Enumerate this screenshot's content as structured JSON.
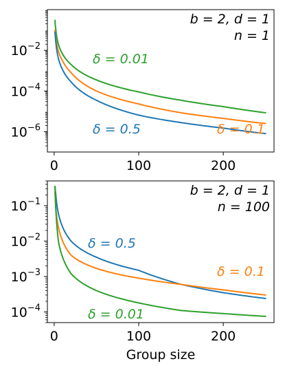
{
  "chart_data": [
    {
      "type": "line",
      "id": "top",
      "annotation_lines": [
        "b = 2, d = 1",
        "n = 1"
      ],
      "xlabel": "",
      "ylabel": "",
      "xlim": [
        -8,
        260
      ],
      "ylim": [
        1e-07,
        1.0
      ],
      "yscale": "log",
      "xticks": [
        0,
        100,
        200
      ],
      "xtick_labels": [
        "0",
        "100",
        "200"
      ],
      "yticks": [
        0.01,
        0.0001,
        1e-06
      ],
      "ytick_labels": [
        {
          "base": "10",
          "exp": "−2"
        },
        {
          "base": "10",
          "exp": "−4"
        },
        {
          "base": "10",
          "exp": "−6"
        }
      ],
      "grid": false,
      "series": [
        {
          "name": "δ = 0.01",
          "color": "#2ca02c",
          "x": [
            1,
            2,
            5,
            10,
            20,
            50,
            100,
            150,
            200,
            250
          ],
          "y": [
            0.3,
            0.1,
            0.02,
            0.0065,
            0.002,
            0.00035,
            9e-05,
            3.5e-05,
            1.7e-05,
            8.5e-06
          ]
        },
        {
          "name": "δ = 0.1",
          "color": "#ff7f0e",
          "x": [
            1,
            2,
            5,
            10,
            20,
            50,
            100,
            150,
            200,
            250
          ],
          "y": [
            0.1,
            0.04,
            0.009,
            0.003,
            0.0008,
            0.0001,
            2.3e-05,
            8.5e-06,
            4.5e-06,
            2.5e-06
          ]
        },
        {
          "name": "δ = 0.5",
          "color": "#1f77b4",
          "x": [
            1,
            2,
            5,
            10,
            20,
            50,
            100,
            150,
            200,
            250
          ],
          "y": [
            0.08,
            0.025,
            0.004,
            0.0011,
            0.00028,
            3.5e-05,
            6.5e-06,
            2.8e-06,
            1.5e-06,
            8e-07
          ]
        }
      ]
    },
    {
      "type": "line",
      "id": "bottom",
      "annotation_lines": [
        "b = 2, d = 1",
        "n = 100"
      ],
      "xlabel": "Group size",
      "ylabel": "",
      "xlim": [
        -8,
        260
      ],
      "ylim": [
        5e-05,
        0.5
      ],
      "yscale": "log",
      "xticks": [
        0,
        100,
        200
      ],
      "xtick_labels": [
        "0",
        "100",
        "200"
      ],
      "yticks": [
        0.1,
        0.01,
        0.001,
        0.0001
      ],
      "ytick_labels": [
        {
          "base": "10",
          "exp": "−1"
        },
        {
          "base": "10",
          "exp": "−2"
        },
        {
          "base": "10",
          "exp": "−3"
        },
        {
          "base": "10",
          "exp": "−4"
        }
      ],
      "grid": false,
      "series": [
        {
          "name": "δ = 0.5",
          "color": "#1f77b4",
          "x": [
            1,
            2,
            5,
            10,
            20,
            50,
            100,
            150,
            200,
            250
          ],
          "y": [
            0.35,
            0.2,
            0.06,
            0.025,
            0.01,
            0.0035,
            0.0015,
            0.0006,
            0.00035,
            0.00024
          ]
        },
        {
          "name": "δ = 0.1",
          "color": "#ff7f0e",
          "x": [
            1,
            2,
            5,
            10,
            20,
            50,
            100,
            150,
            200,
            250
          ],
          "y": [
            0.25,
            0.08,
            0.025,
            0.01,
            0.004,
            0.0017,
            0.0009,
            0.0006,
            0.00042,
            0.0003
          ]
        },
        {
          "name": "δ = 0.01",
          "color": "#2ca02c",
          "x": [
            1,
            2,
            5,
            10,
            20,
            50,
            100,
            150,
            200,
            250
          ],
          "y": [
            0.35,
            0.08,
            0.01,
            0.0035,
            0.0012,
            0.0004,
            0.00018,
            0.00011,
            9e-05,
            7.5e-05
          ]
        }
      ]
    }
  ]
}
